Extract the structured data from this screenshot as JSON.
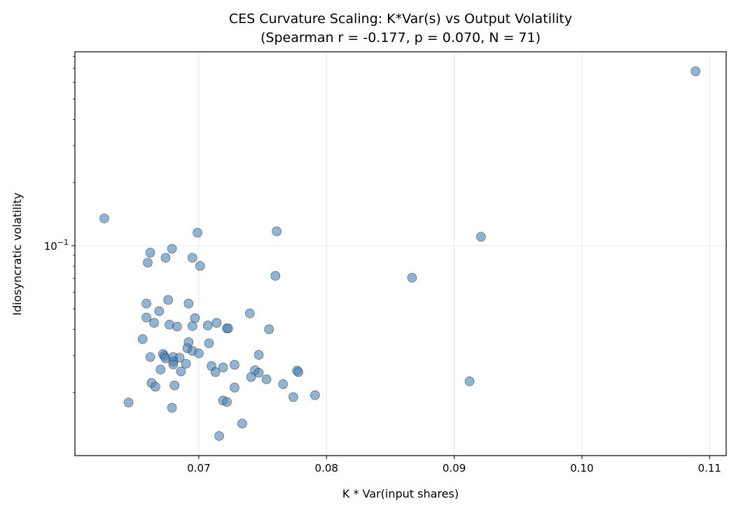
{
  "chart_data": {
    "type": "scatter",
    "title": "CES Curvature Scaling: K*Var(s) vs Output Volatility",
    "subtitle": "(Spearman r = -0.177, p = 0.070, N = 71)",
    "xlabel": "K * Var(input shares)",
    "ylabel": "Idiosyncratic volatility",
    "xscale": "linear",
    "yscale": "log",
    "xlim": [
      0.0603,
      0.1113
    ],
    "ylim": [
      0.01,
      0.84
    ],
    "x_ticks": [
      0.07,
      0.08,
      0.09,
      0.1,
      0.11
    ],
    "x_tick_labels": [
      "0.07",
      "0.08",
      "0.09",
      "0.10",
      "0.11"
    ],
    "y_ticks": [
      0.1
    ],
    "y_tick_base": "10",
    "y_tick_exponent": "−1",
    "grid": true,
    "marker_color": "#4682b4",
    "marker_edge_color": "#333333",
    "marker_alpha": 0.6,
    "points": [
      [
        0.0626,
        0.135
      ],
      [
        0.0699,
        0.1153
      ],
      [
        0.0761,
        0.1171
      ],
      [
        0.0662,
        0.0927
      ],
      [
        0.0679,
        0.0968
      ],
      [
        0.066,
        0.0831
      ],
      [
        0.0674,
        0.0877
      ],
      [
        0.0695,
        0.0877
      ],
      [
        0.0701,
        0.0802
      ],
      [
        0.076,
        0.0719
      ],
      [
        0.0659,
        0.053
      ],
      [
        0.0676,
        0.0552
      ],
      [
        0.0692,
        0.053
      ],
      [
        0.0669,
        0.0488
      ],
      [
        0.074,
        0.0476
      ],
      [
        0.0659,
        0.0455
      ],
      [
        0.0697,
        0.0452
      ],
      [
        0.0665,
        0.0429
      ],
      [
        0.0714,
        0.0429
      ],
      [
        0.0677,
        0.0421
      ],
      [
        0.0683,
        0.0412
      ],
      [
        0.0695,
        0.0414
      ],
      [
        0.0707,
        0.0417
      ],
      [
        0.0722,
        0.0404
      ],
      [
        0.0723,
        0.0404
      ],
      [
        0.0755,
        0.04
      ],
      [
        0.0656,
        0.0359
      ],
      [
        0.0692,
        0.0347
      ],
      [
        0.0708,
        0.0343
      ],
      [
        0.0691,
        0.0325
      ],
      [
        0.0695,
        0.0316
      ],
      [
        0.07,
        0.0307
      ],
      [
        0.0747,
        0.0302
      ],
      [
        0.0662,
        0.0295
      ],
      [
        0.0672,
        0.0305
      ],
      [
        0.0673,
        0.0298
      ],
      [
        0.0674,
        0.0291
      ],
      [
        0.068,
        0.0295
      ],
      [
        0.0685,
        0.0293
      ],
      [
        0.068,
        0.0281
      ],
      [
        0.068,
        0.0272
      ],
      [
        0.069,
        0.0274
      ],
      [
        0.067,
        0.0257
      ],
      [
        0.0686,
        0.0252
      ],
      [
        0.071,
        0.0267
      ],
      [
        0.0719,
        0.0263
      ],
      [
        0.0728,
        0.0271
      ],
      [
        0.0713,
        0.025
      ],
      [
        0.0744,
        0.0255
      ],
      [
        0.0747,
        0.0248
      ],
      [
        0.0741,
        0.0237
      ],
      [
        0.0753,
        0.0231
      ],
      [
        0.0777,
        0.0254
      ],
      [
        0.0778,
        0.025
      ],
      [
        0.0663,
        0.0222
      ],
      [
        0.0666,
        0.0213
      ],
      [
        0.0681,
        0.0216
      ],
      [
        0.0728,
        0.0211
      ],
      [
        0.0766,
        0.0219
      ],
      [
        0.0774,
        0.019
      ],
      [
        0.0791,
        0.0194
      ],
      [
        0.0645,
        0.0179
      ],
      [
        0.0719,
        0.0183
      ],
      [
        0.0722,
        0.018
      ],
      [
        0.0679,
        0.0169
      ],
      [
        0.0734,
        0.0142
      ],
      [
        0.0716,
        0.0124
      ],
      [
        0.1089,
        0.678
      ],
      [
        0.0921,
        0.1104
      ],
      [
        0.0867,
        0.0704
      ],
      [
        0.0912,
        0.0226
      ]
    ]
  }
}
